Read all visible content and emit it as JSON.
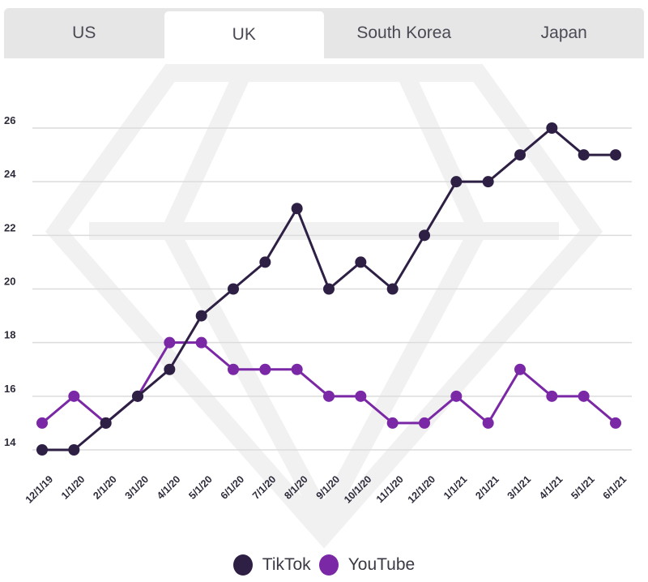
{
  "tabs": [
    {
      "label": "US",
      "active": false
    },
    {
      "label": "UK",
      "active": true
    },
    {
      "label": "South Korea",
      "active": false
    },
    {
      "label": "Japan",
      "active": false
    }
  ],
  "chart_data": {
    "type": "line",
    "title": "",
    "xlabel": "",
    "ylabel": "",
    "categories": [
      "12/1/19",
      "1/1/20",
      "2/1/20",
      "3/1/20",
      "4/1/20",
      "5/1/20",
      "6/1/20",
      "7/1/20",
      "8/1/20",
      "9/1/20",
      "10/1/20",
      "11/1/20",
      "12/1/20",
      "1/1/21",
      "2/1/21",
      "3/1/21",
      "4/1/21",
      "5/1/21",
      "6/1/21"
    ],
    "yticks": [
      14,
      16,
      18,
      20,
      22,
      24,
      26
    ],
    "ylim": [
      13,
      27
    ],
    "grid": "horizontal",
    "legend_position": "bottom",
    "series": [
      {
        "name": "TikTok",
        "color": "#2e1f44",
        "values": [
          14,
          14,
          15,
          16,
          17,
          19,
          20,
          21,
          23,
          20,
          21,
          20,
          22,
          24,
          24,
          25,
          26,
          25,
          25
        ]
      },
      {
        "name": "YouTube",
        "color": "#7a28a6",
        "values": [
          15,
          16,
          15,
          16,
          18,
          18,
          17,
          17,
          17,
          16,
          16,
          15,
          15,
          16,
          15,
          17,
          16,
          16,
          15
        ]
      }
    ]
  }
}
